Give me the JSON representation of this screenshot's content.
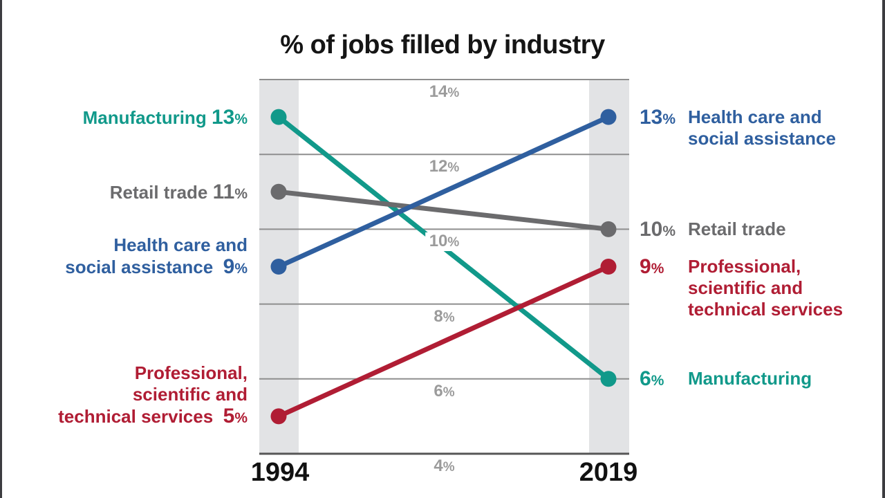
{
  "title": "% of jobs filled by industry",
  "colors": {
    "manufacturing": "#11998a",
    "retail": "#6b6b6d",
    "health": "#2f5f9f",
    "professional": "#b01d34",
    "band": "#e2e3e5",
    "gridline": "#8e8e8e",
    "axis": "#565656",
    "tick_text": "#9b9b9b"
  },
  "chart_data": {
    "type": "line",
    "subtype": "slope",
    "title": "% of jobs filled by industry",
    "x_categories": [
      "1994",
      "2019"
    ],
    "value_suffix": "%",
    "y_axis": {
      "min": 4,
      "max": 14,
      "ticks": [
        14,
        12,
        10,
        8,
        6,
        4
      ],
      "tick_suffix": "%",
      "grid": true
    },
    "legend_position": "labels-on-both-sides",
    "series": [
      {
        "id": "manufacturing",
        "name": "Manufacturing",
        "color": "#11998a",
        "values": [
          13,
          6
        ],
        "left_label_lines": [
          "Manufacturing"
        ],
        "right_label_lines": [
          "Manufacturing"
        ]
      },
      {
        "id": "retail",
        "name": "Retail trade",
        "color": "#6b6b6d",
        "values": [
          11,
          10
        ],
        "left_label_lines": [
          "Retail trade"
        ],
        "right_label_lines": [
          "Retail trade"
        ]
      },
      {
        "id": "health",
        "name": "Health care and social assistance",
        "color": "#2f5f9f",
        "values": [
          9,
          13
        ],
        "left_label_lines": [
          "Health care and",
          "social assistance"
        ],
        "right_label_lines": [
          "Health care and",
          "social assistance"
        ]
      },
      {
        "id": "professional",
        "name": "Professional, scientific and technical services",
        "color": "#b01d34",
        "values": [
          5,
          9
        ],
        "left_label_lines": [
          "Professional,",
          "scientific and",
          "technical services"
        ],
        "right_label_lines": [
          "Professional,",
          "scientific and",
          "technical services"
        ]
      }
    ]
  }
}
